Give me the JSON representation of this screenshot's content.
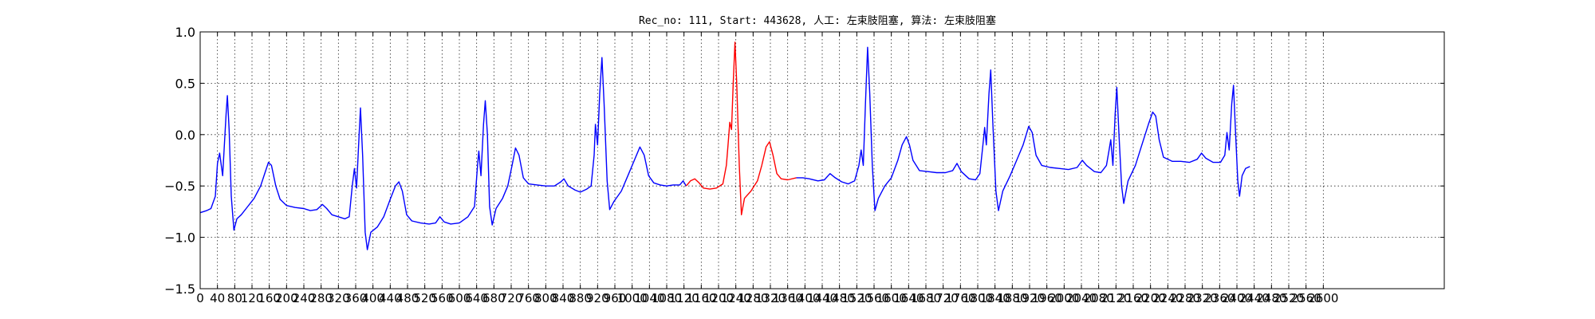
{
  "chart_data": {
    "type": "line",
    "title": "Rec_no: 111, Start: 443628, 人工: 左束肢阻塞, 算法: 左束肢阻塞",
    "xlabel": "",
    "ylabel": "",
    "xlim": [
      0,
      2880
    ],
    "ylim": [
      -1.5,
      1.0
    ],
    "grid": true,
    "y_ticks": [
      1.0,
      0.5,
      0.0,
      -0.5,
      -1.0,
      -1.5
    ],
    "y_tick_labels": [
      "1.0",
      "0.5",
      "0.0",
      "−0.5",
      "−1.0",
      "−1.5"
    ],
    "x_ticks": [
      0,
      40,
      80,
      120,
      160,
      200,
      240,
      280,
      320,
      360,
      400,
      440,
      480,
      520,
      560,
      600,
      640,
      680,
      720,
      760,
      800,
      840,
      880,
      920,
      960,
      1000,
      1040,
      1080,
      1120,
      1160,
      1200,
      1240,
      1280,
      1320,
      1360,
      1400,
      1440,
      1480,
      1520,
      1560,
      1600,
      1640,
      1680,
      1720,
      1760,
      1800,
      1840,
      1880,
      1920,
      1960,
      2000,
      2040,
      2080,
      2120,
      2160,
      2200,
      2240,
      2280,
      2320,
      2360,
      2400,
      2440,
      2480,
      2520,
      2560,
      2600
    ],
    "x_tick_labels": [
      "0",
      "40",
      "80",
      "120",
      "160",
      "200",
      "240",
      "280",
      "320",
      "360",
      "400",
      "440",
      "480",
      "520",
      "560",
      "600",
      "640",
      "680",
      "720",
      "760",
      "800",
      "840",
      "880",
      "920",
      "960",
      "1000",
      "1040",
      "1080",
      "1120",
      "1160",
      "1200",
      "1240",
      "1280",
      "1320",
      "1360",
      "1400",
      "1440",
      "1480",
      "1520",
      "1560",
      "1600",
      "1640",
      "1680",
      "1720",
      "1760",
      "1800",
      "1840",
      "1880",
      "1920",
      "1960",
      "2000",
      "2040",
      "2080",
      "2120",
      "2160",
      "2200",
      "2240",
      "2280",
      "2320",
      "2360",
      "2400",
      "2440",
      "2480",
      "2520",
      "2560",
      "2600"
    ],
    "series": [
      {
        "color": "#0000ff",
        "segments": [
          [
            [
              0,
              -0.76
            ],
            [
              15,
              -0.74
            ],
            [
              25,
              -0.72
            ],
            [
              35,
              -0.6
            ],
            [
              40,
              -0.28
            ],
            [
              45,
              -0.18
            ],
            [
              52,
              -0.4
            ],
            [
              60,
              0.2
            ],
            [
              63,
              0.38
            ],
            [
              67,
              0.05
            ],
            [
              72,
              -0.6
            ],
            [
              78,
              -0.93
            ],
            [
              85,
              -0.82
            ],
            [
              95,
              -0.78
            ],
            [
              110,
              -0.7
            ],
            [
              125,
              -0.62
            ],
            [
              140,
              -0.5
            ],
            [
              150,
              -0.37
            ],
            [
              158,
              -0.27
            ],
            [
              165,
              -0.3
            ],
            [
              175,
              -0.5
            ],
            [
              185,
              -0.63
            ],
            [
              200,
              -0.69
            ],
            [
              220,
              -0.71
            ],
            [
              240,
              -0.72
            ],
            [
              255,
              -0.74
            ],
            [
              270,
              -0.73
            ],
            [
              283,
              -0.68
            ],
            [
              293,
              -0.72
            ],
            [
              305,
              -0.78
            ],
            [
              320,
              -0.8
            ],
            [
              335,
              -0.82
            ],
            [
              345,
              -0.8
            ],
            [
              352,
              -0.5
            ],
            [
              357,
              -0.33
            ],
            [
              362,
              -0.52
            ],
            [
              368,
              0.0
            ],
            [
              371,
              0.26
            ],
            [
              376,
              -0.2
            ],
            [
              382,
              -0.95
            ],
            [
              387,
              -1.12
            ],
            [
              395,
              -0.95
            ],
            [
              410,
              -0.9
            ],
            [
              425,
              -0.8
            ],
            [
              440,
              -0.63
            ],
            [
              452,
              -0.5
            ],
            [
              460,
              -0.46
            ],
            [
              468,
              -0.55
            ],
            [
              478,
              -0.78
            ],
            [
              490,
              -0.84
            ],
            [
              510,
              -0.86
            ],
            [
              530,
              -0.87
            ],
            [
              545,
              -0.86
            ],
            [
              555,
              -0.8
            ],
            [
              565,
              -0.85
            ],
            [
              580,
              -0.87
            ],
            [
              600,
              -0.86
            ],
            [
              620,
              -0.8
            ],
            [
              635,
              -0.7
            ],
            [
              642,
              -0.3
            ],
            [
              645,
              -0.16
            ],
            [
              650,
              -0.4
            ],
            [
              656,
              0.1
            ],
            [
              660,
              0.33
            ],
            [
              665,
              0.0
            ],
            [
              670,
              -0.7
            ],
            [
              676,
              -0.88
            ],
            [
              685,
              -0.72
            ],
            [
              700,
              -0.62
            ],
            [
              712,
              -0.5
            ],
            [
              722,
              -0.3
            ],
            [
              730,
              -0.13
            ],
            [
              738,
              -0.2
            ],
            [
              748,
              -0.42
            ],
            [
              760,
              -0.48
            ],
            [
              780,
              -0.49
            ],
            [
              800,
              -0.5
            ],
            [
              820,
              -0.5
            ],
            [
              835,
              -0.46
            ],
            [
              842,
              -0.43
            ],
            [
              852,
              -0.5
            ],
            [
              868,
              -0.54
            ],
            [
              880,
              -0.56
            ],
            [
              895,
              -0.53
            ],
            [
              905,
              -0.5
            ],
            [
              912,
              -0.2
            ],
            [
              915,
              0.1
            ],
            [
              920,
              -0.1
            ],
            [
              925,
              0.4
            ],
            [
              930,
              0.75
            ],
            [
              935,
              0.3
            ],
            [
              942,
              -0.45
            ],
            [
              948,
              -0.73
            ],
            [
              958,
              -0.65
            ],
            [
              975,
              -0.55
            ],
            [
              990,
              -0.4
            ],
            [
              1005,
              -0.25
            ],
            [
              1018,
              -0.12
            ],
            [
              1028,
              -0.2
            ],
            [
              1038,
              -0.4
            ],
            [
              1050,
              -0.47
            ],
            [
              1065,
              -0.49
            ],
            [
              1080,
              -0.5
            ],
            [
              1095,
              -0.49
            ],
            [
              1110,
              -0.49
            ],
            [
              1118,
              -0.45
            ],
            [
              1125,
              -0.5
            ]
          ],
          [
            [
              1380,
              -0.42
            ],
            [
              1395,
              -0.42
            ],
            [
              1410,
              -0.43
            ],
            [
              1430,
              -0.45
            ],
            [
              1445,
              -0.44
            ],
            [
              1458,
              -0.38
            ],
            [
              1470,
              -0.42
            ],
            [
              1485,
              -0.46
            ],
            [
              1500,
              -0.48
            ],
            [
              1515,
              -0.45
            ],
            [
              1525,
              -0.3
            ],
            [
              1530,
              -0.15
            ],
            [
              1535,
              -0.3
            ],
            [
              1540,
              0.3
            ],
            [
              1545,
              0.85
            ],
            [
              1550,
              0.4
            ],
            [
              1556,
              -0.3
            ],
            [
              1562,
              -0.74
            ],
            [
              1570,
              -0.62
            ],
            [
              1585,
              -0.5
            ],
            [
              1600,
              -0.42
            ],
            [
              1615,
              -0.25
            ],
            [
              1625,
              -0.1
            ],
            [
              1635,
              -0.02
            ],
            [
              1642,
              -0.1
            ],
            [
              1650,
              -0.25
            ],
            [
              1665,
              -0.35
            ],
            [
              1685,
              -0.36
            ],
            [
              1705,
              -0.37
            ],
            [
              1725,
              -0.37
            ],
            [
              1742,
              -0.35
            ],
            [
              1752,
              -0.28
            ],
            [
              1762,
              -0.36
            ],
            [
              1780,
              -0.43
            ],
            [
              1795,
              -0.44
            ],
            [
              1805,
              -0.38
            ],
            [
              1812,
              -0.1
            ],
            [
              1816,
              0.07
            ],
            [
              1820,
              -0.1
            ],
            [
              1826,
              0.4
            ],
            [
              1830,
              0.63
            ],
            [
              1835,
              0.1
            ],
            [
              1842,
              -0.55
            ],
            [
              1848,
              -0.74
            ],
            [
              1858,
              -0.55
            ],
            [
              1875,
              -0.4
            ],
            [
              1890,
              -0.25
            ],
            [
              1905,
              -0.1
            ],
            [
              1918,
              0.08
            ],
            [
              1926,
              0.02
            ],
            [
              1935,
              -0.2
            ],
            [
              1948,
              -0.3
            ],
            [
              1968,
              -0.32
            ],
            [
              1990,
              -0.33
            ],
            [
              2010,
              -0.34
            ],
            [
              2030,
              -0.32
            ],
            [
              2042,
              -0.25
            ],
            [
              2052,
              -0.3
            ],
            [
              2070,
              -0.36
            ],
            [
              2085,
              -0.37
            ],
            [
              2098,
              -0.3
            ],
            [
              2104,
              -0.15
            ],
            [
              2108,
              -0.05
            ],
            [
              2113,
              -0.3
            ],
            [
              2118,
              0.2
            ],
            [
              2122,
              0.46
            ],
            [
              2127,
              0.0
            ],
            [
              2133,
              -0.5
            ],
            [
              2138,
              -0.67
            ],
            [
              2148,
              -0.45
            ],
            [
              2165,
              -0.3
            ],
            [
              2180,
              -0.1
            ],
            [
              2195,
              0.1
            ],
            [
              2205,
              0.22
            ],
            [
              2212,
              0.18
            ],
            [
              2220,
              -0.05
            ],
            [
              2230,
              -0.22
            ],
            [
              2250,
              -0.26
            ],
            [
              2270,
              -0.26
            ],
            [
              2290,
              -0.27
            ],
            [
              2308,
              -0.24
            ],
            [
              2318,
              -0.18
            ],
            [
              2328,
              -0.23
            ],
            [
              2345,
              -0.27
            ],
            [
              2362,
              -0.27
            ],
            [
              2372,
              -0.2
            ],
            [
              2377,
              0.02
            ],
            [
              2382,
              -0.15
            ],
            [
              2388,
              0.3
            ],
            [
              2392,
              0.48
            ],
            [
              2397,
              0.0
            ],
            [
              2402,
              -0.45
            ],
            [
              2406,
              -0.6
            ],
            [
              2412,
              -0.4
            ],
            [
              2420,
              -0.33
            ],
            [
              2430,
              -0.31
            ]
          ]
        ]
      },
      {
        "color": "#ff0000",
        "segments": [
          [
            [
              1125,
              -0.5
            ],
            [
              1135,
              -0.45
            ],
            [
              1145,
              -0.43
            ],
            [
              1155,
              -0.47
            ],
            [
              1165,
              -0.52
            ],
            [
              1180,
              -0.53
            ],
            [
              1195,
              -0.52
            ],
            [
              1210,
              -0.48
            ],
            [
              1218,
              -0.3
            ],
            [
              1222,
              -0.1
            ],
            [
              1226,
              0.12
            ],
            [
              1230,
              0.05
            ],
            [
              1234,
              0.5
            ],
            [
              1238,
              0.9
            ],
            [
              1242,
              0.5
            ],
            [
              1248,
              -0.3
            ],
            [
              1253,
              -0.78
            ],
            [
              1260,
              -0.62
            ],
            [
              1275,
              -0.55
            ],
            [
              1290,
              -0.45
            ],
            [
              1300,
              -0.3
            ],
            [
              1310,
              -0.12
            ],
            [
              1318,
              -0.07
            ],
            [
              1326,
              -0.2
            ],
            [
              1335,
              -0.38
            ],
            [
              1345,
              -0.43
            ],
            [
              1360,
              -0.44
            ],
            [
              1380,
              -0.42
            ]
          ]
        ]
      }
    ]
  }
}
